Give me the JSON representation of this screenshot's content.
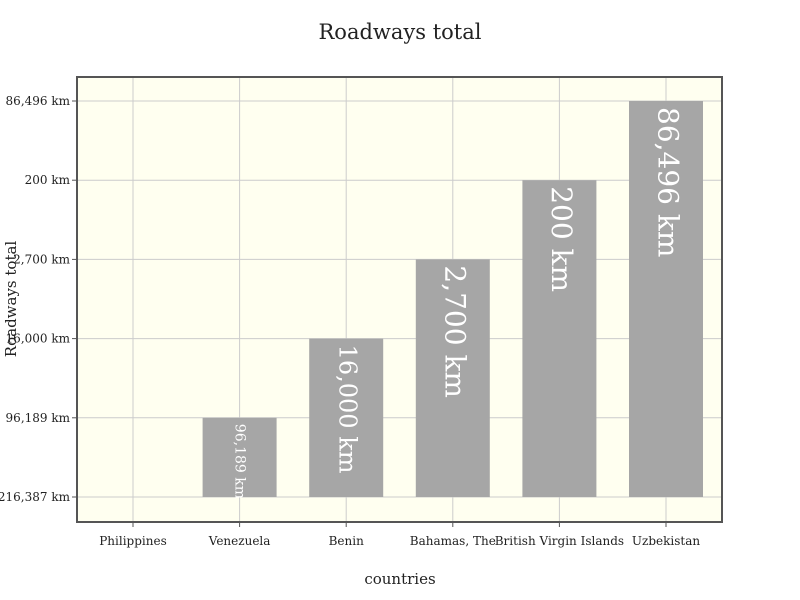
{
  "chart_data": {
    "type": "bar",
    "title": "Roadways total",
    "xlabel": "countries",
    "ylabel": "Roadways total",
    "categories": [
      "Philippines",
      "Venezuela",
      "Benin",
      "Bahamas, The",
      "British Virgin Islands",
      "Uzbekistan"
    ],
    "values": [
      216387,
      96189,
      16000,
      2700,
      200,
      86496
    ],
    "value_labels": [
      "",
      "96,189 km",
      "16,000 km",
      "2,700 km",
      "200 km",
      "86,496 km"
    ],
    "y_ticks": [
      "216,387 km",
      "96,189 km",
      "16,000 km",
      "2,700 km",
      "200 km",
      "86,496 km"
    ],
    "y_axis_type": "category (ordinal, values in listed order)",
    "grid": true,
    "legend": "none"
  },
  "colors": {
    "plot_background": "#fffff0",
    "bar": "#a6a6a6",
    "grid": "#cccccc",
    "frame": "#555555",
    "bar_label": "#ffffff"
  }
}
